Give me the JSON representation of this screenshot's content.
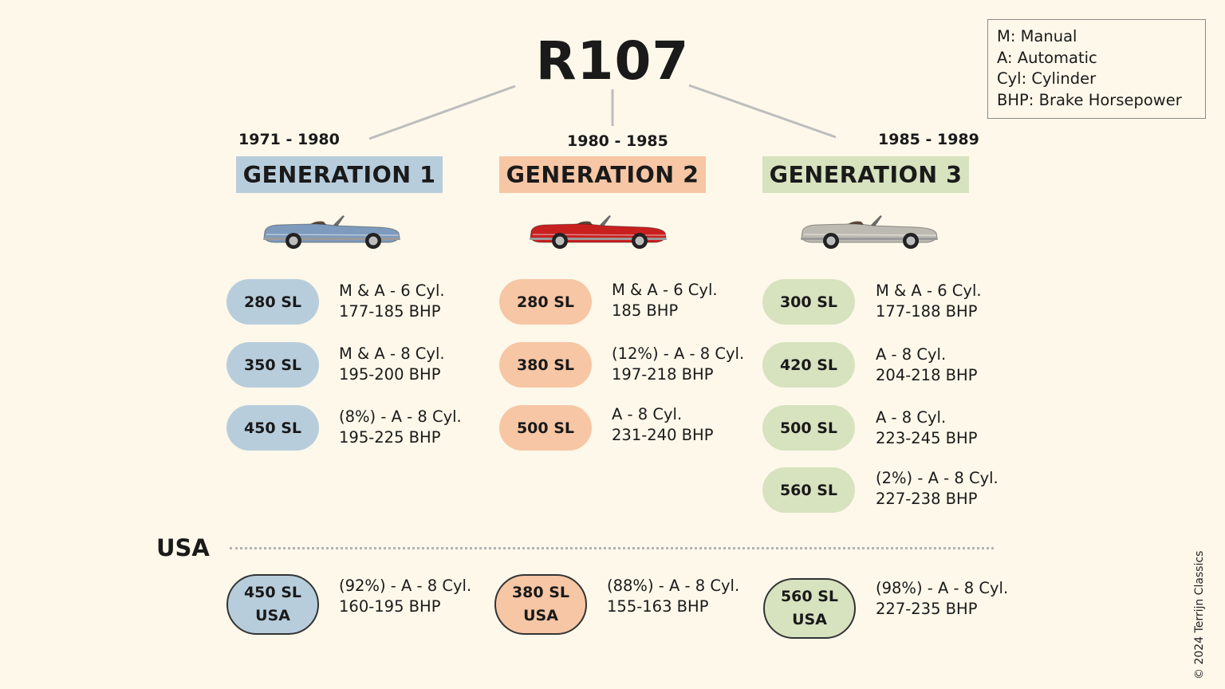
{
  "title": "R107",
  "legend": [
    "M: Manual",
    "A: Automatic",
    "Cyl: Cylinder",
    "BHP: Brake Horsepower"
  ],
  "generations": [
    {
      "years": "1971 - 1980",
      "label": "GENERATION 1",
      "color": "#b8cddc",
      "car_color": "#7e9bbd",
      "models": [
        {
          "name": "280 SL",
          "spec1": "M & A - 6 Cyl.",
          "spec2": "177-185 BHP"
        },
        {
          "name": "350 SL",
          "spec1": "M & A - 8 Cyl.",
          "spec2": "195-200 BHP"
        },
        {
          "name": "450 SL",
          "spec1": "(8%) - A - 8 Cyl.",
          "spec2": "195-225 BHP"
        }
      ],
      "usa": {
        "name1": "450 SL",
        "name2": "USA",
        "spec1": "(92%) - A - 8 Cyl.",
        "spec2": "160-195 BHP"
      }
    },
    {
      "years": "1980 - 1985",
      "label": "GENERATION 2",
      "color": "#f7c6a5",
      "car_color": "#c8201f",
      "models": [
        {
          "name": "280 SL",
          "spec1": "M & A - 6 Cyl.",
          "spec2": "185 BHP"
        },
        {
          "name": "380 SL",
          "spec1": "(12%) - A - 8 Cyl.",
          "spec2": "197-218 BHP"
        },
        {
          "name": "500 SL",
          "spec1": "A - 8 Cyl.",
          "spec2": "231-240 BHP"
        }
      ],
      "usa": {
        "name1": "380 SL",
        "name2": "USA",
        "spec1": "(88%) - A - 8 Cyl.",
        "spec2": "155-163 BHP"
      }
    },
    {
      "years": "1985 - 1989",
      "label": "GENERATION 3",
      "color": "#d7e2bf",
      "car_color": "#bdbab2",
      "models": [
        {
          "name": "300 SL",
          "spec1": "M & A - 6 Cyl.",
          "spec2": "177-188 BHP"
        },
        {
          "name": "420 SL",
          "spec1": "A - 8 Cyl.",
          "spec2": "204-218 BHP"
        },
        {
          "name": "500 SL",
          "spec1": "A - 8 Cyl.",
          "spec2": "223-245 BHP"
        },
        {
          "name": "560 SL",
          "spec1": "(2%) - A - 8 Cyl.",
          "spec2": "227-238 BHP"
        }
      ],
      "usa": {
        "name1": "560 SL",
        "name2": "USA",
        "spec1": "(98%) - A - 8 Cyl.",
        "spec2": "227-235 BHP"
      }
    }
  ],
  "usa_title": "USA",
  "copyright": "© 2024 Terrijn Classics"
}
